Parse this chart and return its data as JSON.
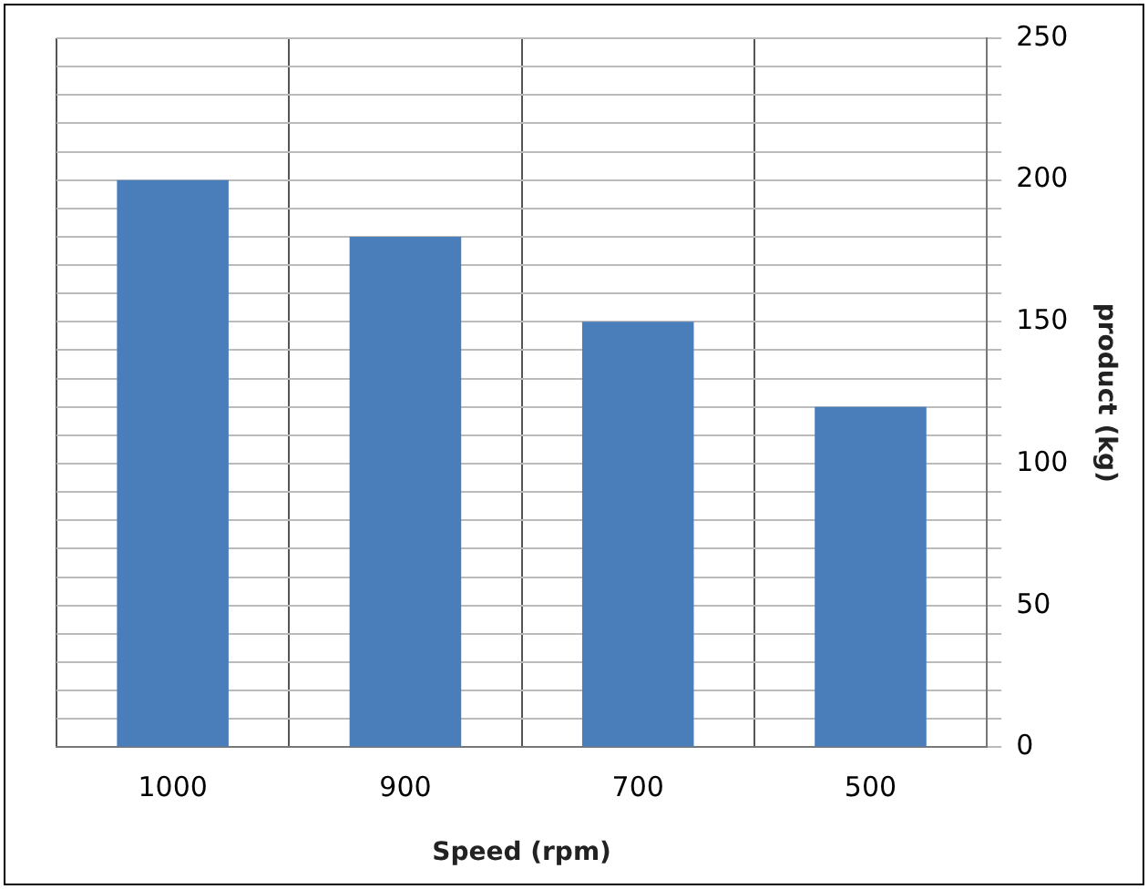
{
  "chart_data": {
    "type": "bar",
    "xlabel": "Speed (rpm)",
    "ylabel": "product (kg)",
    "categories": [
      "1000",
      "900",
      "700",
      "500"
    ],
    "values": [
      200,
      180,
      150,
      120
    ],
    "color": "#4a7ebb",
    "ylim": [
      0,
      250
    ],
    "yticks": [
      0,
      {
        "value": 10,
        "label": null
      },
      {
        "value": 20,
        "label": null
      },
      {
        "value": 30,
        "label": null
      },
      {
        "value": 40,
        "label": null
      },
      50,
      {
        "value": 60,
        "label": null
      },
      {
        "value": 70,
        "label": null
      },
      {
        "value": 80,
        "label": null
      },
      {
        "value": 90,
        "label": null
      },
      100,
      {
        "value": 110,
        "label": null
      },
      {
        "value": 120,
        "label": null
      },
      {
        "value": 130,
        "label": null
      },
      {
        "value": 140,
        "label": null
      },
      150,
      {
        "value": 160,
        "label": null
      },
      {
        "value": 170,
        "label": null
      },
      {
        "value": 180,
        "label": null
      },
      {
        "value": 190,
        "label": null
      },
      200,
      {
        "value": 210,
        "label": null
      },
      {
        "value": 220,
        "label": null
      },
      {
        "value": 230,
        "label": null
      },
      {
        "value": 240,
        "label": null
      },
      250
    ],
    "grid": true
  }
}
